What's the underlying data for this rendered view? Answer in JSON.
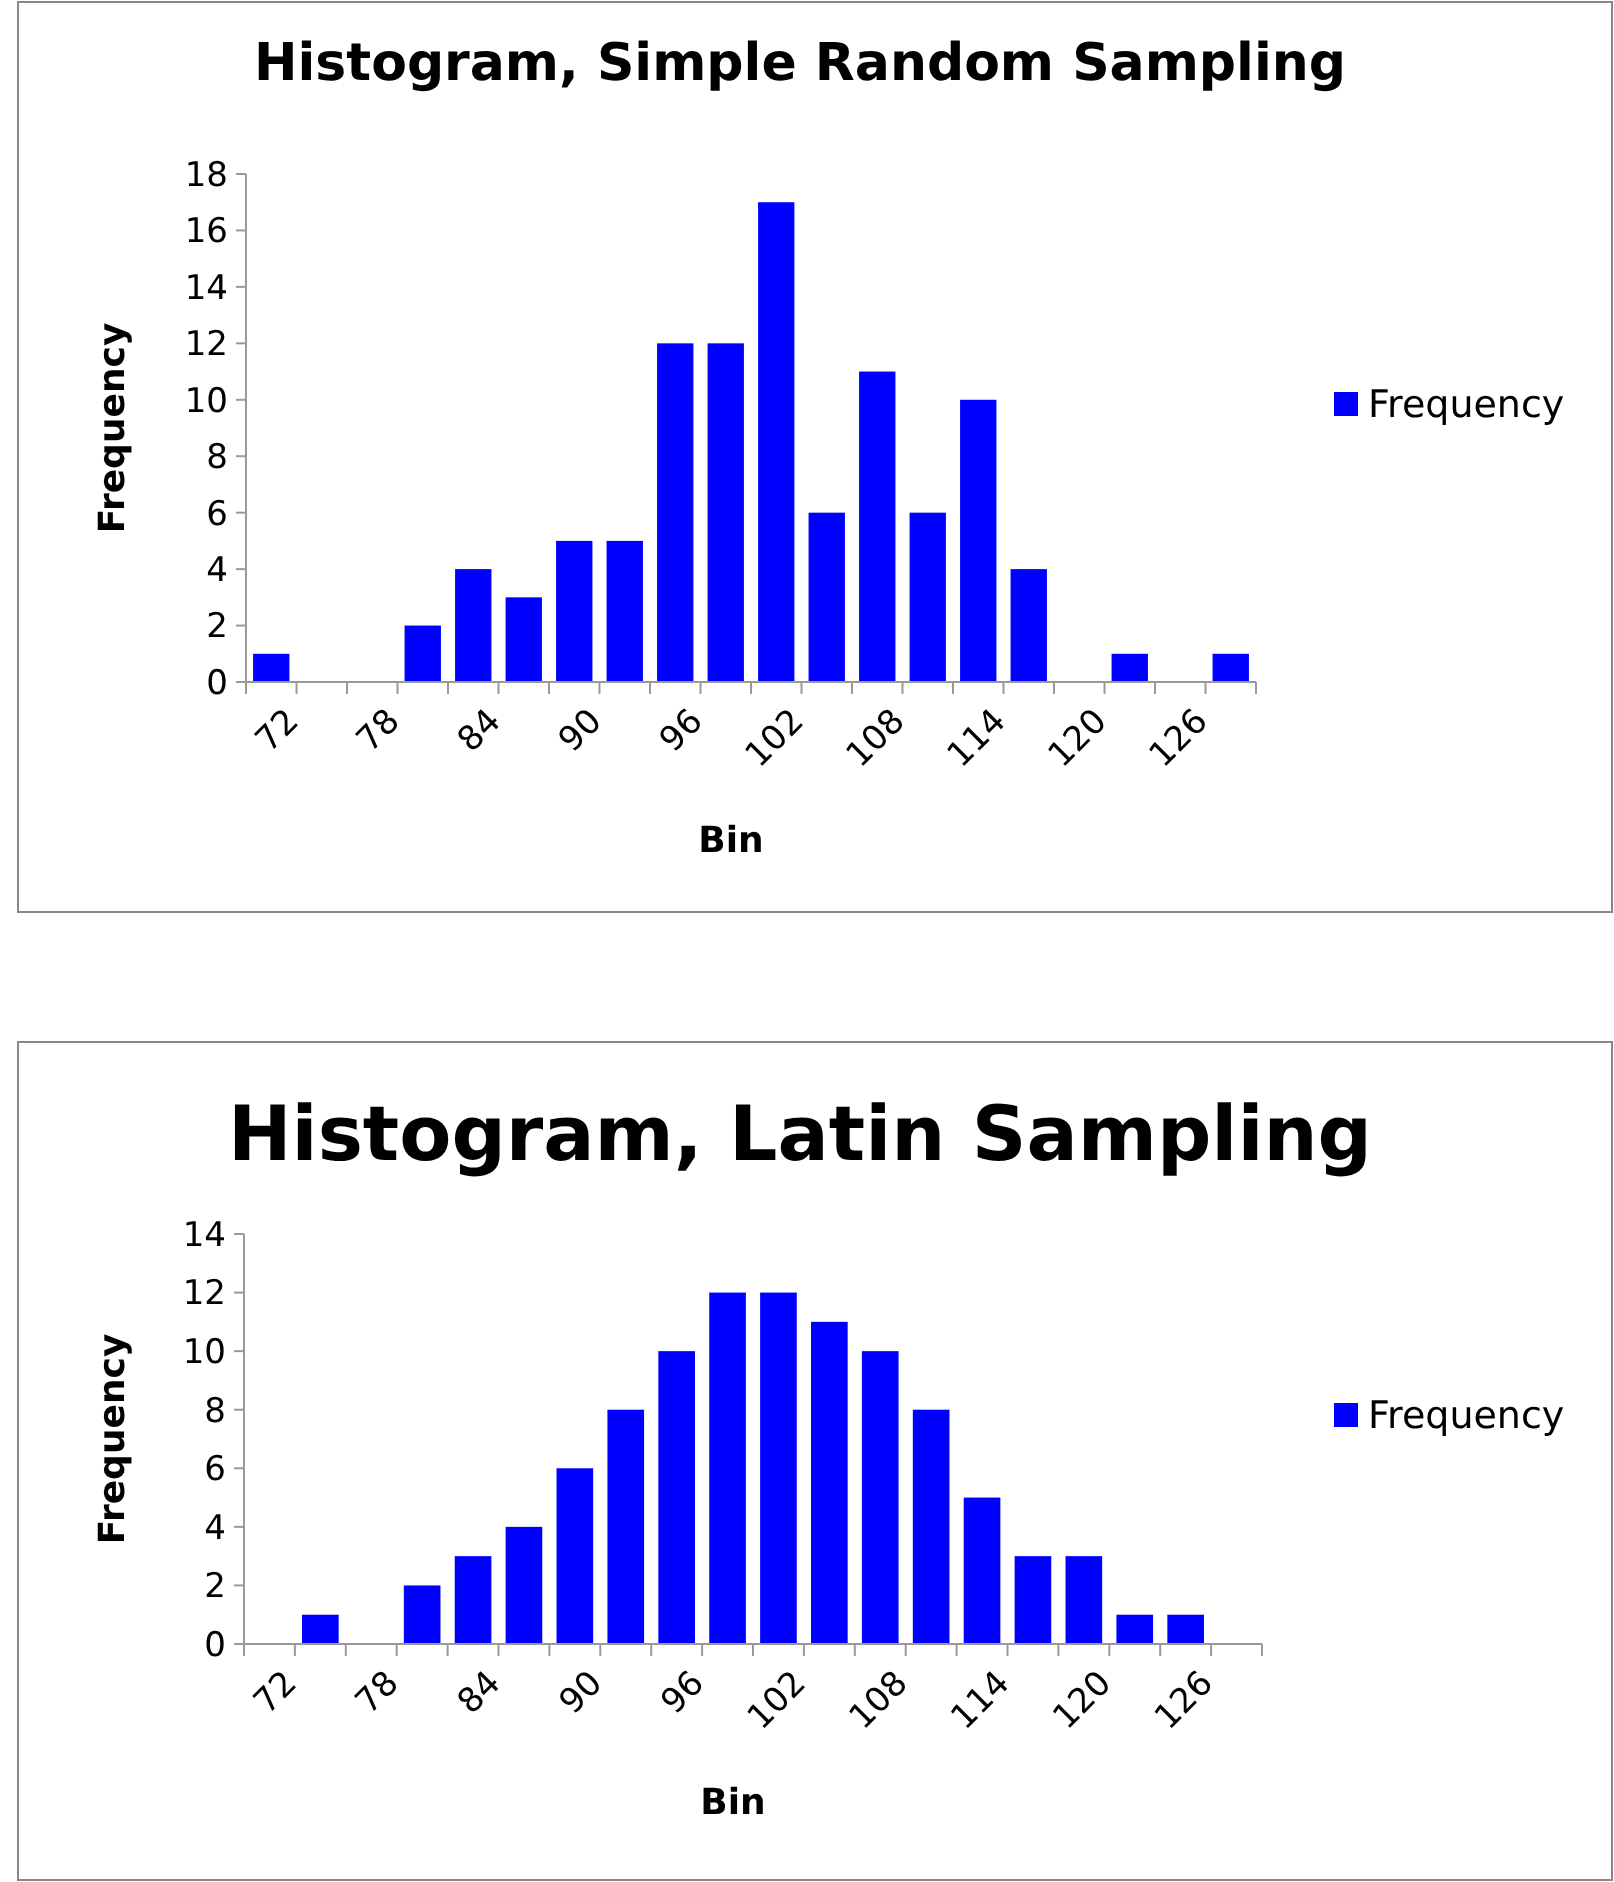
{
  "chart_data": [
    {
      "type": "bar",
      "title": "Histogram, Simple Random Sampling",
      "xlabel": "Bin",
      "ylabel": "Frequency",
      "categories": [
        "72",
        null,
        "78",
        null,
        "84",
        null,
        "90",
        null,
        "96",
        null,
        "102",
        null,
        "108",
        null,
        "114",
        null,
        "120",
        null,
        "126",
        null
      ],
      "series": [
        {
          "name": "Frequency",
          "color": "#0000ff",
          "values": [
            1,
            0,
            0,
            2,
            4,
            3,
            5,
            5,
            12,
            12,
            17,
            6,
            11,
            6,
            10,
            4,
            0,
            1,
            0,
            1
          ]
        }
      ],
      "ylim": [
        0,
        18
      ],
      "yticks": [
        0,
        2,
        4,
        6,
        8,
        10,
        12,
        14,
        16,
        18
      ],
      "grid": false,
      "legend": "right"
    },
    {
      "type": "bar",
      "title": "Histogram, Latin Sampling",
      "xlabel": "Bin",
      "ylabel": "Frequency",
      "categories": [
        "72",
        null,
        "78",
        null,
        "84",
        null,
        "90",
        null,
        "96",
        null,
        "102",
        null,
        "108",
        null,
        "114",
        null,
        "120",
        null,
        "126",
        null
      ],
      "series": [
        {
          "name": "Frequency",
          "color": "#0000ff",
          "values": [
            0,
            1,
            0,
            2,
            3,
            4,
            6,
            8,
            10,
            12,
            12,
            11,
            10,
            8,
            5,
            3,
            3,
            1,
            1,
            0
          ]
        }
      ],
      "ylim": [
        0,
        14
      ],
      "yticks": [
        0,
        2,
        4,
        6,
        8,
        10,
        12,
        14
      ],
      "grid": false,
      "legend": "right"
    }
  ]
}
